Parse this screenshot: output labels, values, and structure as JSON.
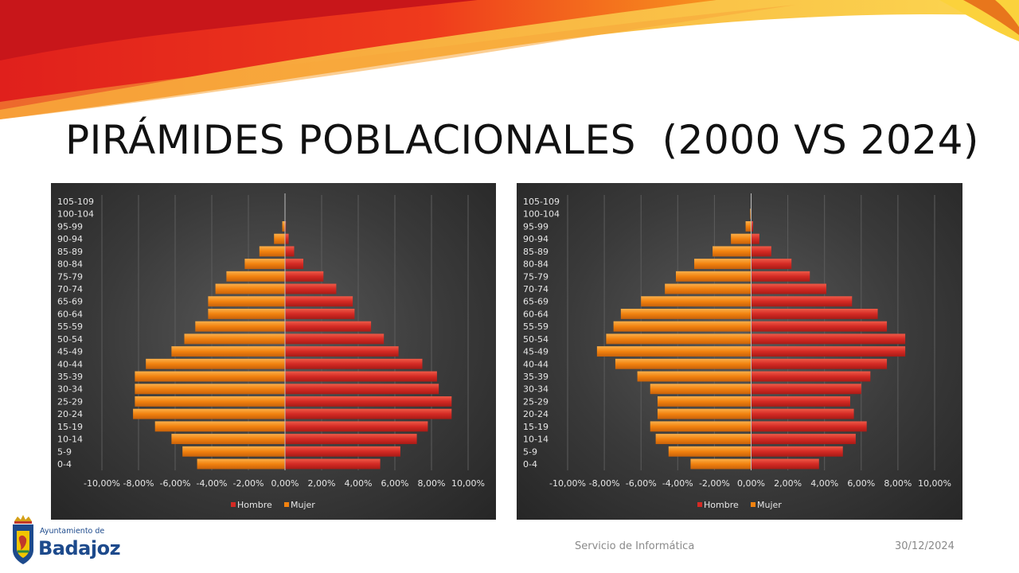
{
  "slide": {
    "title": "PIRÁMIDES POBLACIONALES  (2000 VS 2024)",
    "footer_center": "Servicio de Informática",
    "footer_date": "30/12/2024",
    "logo_small": "Ayuntamiento de",
    "logo_big": "Badajoz"
  },
  "colors": {
    "hombre": "#d42a24",
    "mujer": "#f2820f",
    "swoosh_red": "#e0201c",
    "swoosh_orange": "#f7931e",
    "swoosh_yellow": "#fbd23c"
  },
  "chart_data": [
    {
      "type": "bar",
      "orientation": "horizontal",
      "title": "",
      "categories": [
        "0-4",
        "5-9",
        "10-14",
        "15-19",
        "20-24",
        "25-29",
        "30-34",
        "35-39",
        "40-44",
        "45-49",
        "50-54",
        "55-59",
        "60-64",
        "65-69",
        "70-74",
        "75-79",
        "80-84",
        "85-89",
        "90-94",
        "95-99",
        "100-104",
        "105-109"
      ],
      "xlim": [
        -10,
        10
      ],
      "x_ticks": [
        "-10,00%",
        "-8,00%",
        "-6,00%",
        "-4,00%",
        "-2,00%",
        "0,00%",
        "2,00%",
        "4,00%",
        "6,00%",
        "8,00%",
        "10,00%"
      ],
      "grid": true,
      "legend": "bottom",
      "series": [
        {
          "name": "Hombre",
          "values": [
            5.2,
            6.3,
            7.2,
            7.8,
            9.1,
            9.1,
            8.4,
            8.3,
            7.5,
            6.2,
            5.4,
            4.7,
            3.8,
            3.7,
            2.8,
            2.1,
            1.0,
            0.5,
            0.2,
            0.05,
            0.0,
            0.0
          ]
        },
        {
          "name": "Mujer",
          "values": [
            -4.8,
            -5.6,
            -6.2,
            -7.1,
            -8.3,
            -8.2,
            -8.2,
            -8.2,
            -7.6,
            -6.2,
            -5.5,
            -4.9,
            -4.2,
            -4.2,
            -3.8,
            -3.2,
            -2.2,
            -1.4,
            -0.6,
            -0.15,
            0.0,
            0.0
          ]
        }
      ]
    },
    {
      "type": "bar",
      "orientation": "horizontal",
      "title": "",
      "categories": [
        "0-4",
        "5-9",
        "10-14",
        "15-19",
        "20-24",
        "25-29",
        "30-34",
        "35-39",
        "40-44",
        "45-49",
        "50-54",
        "55-59",
        "60-64",
        "65-69",
        "70-74",
        "75-79",
        "80-84",
        "85-89",
        "90-94",
        "95-99",
        "100-104",
        "105-109"
      ],
      "xlim": [
        -10,
        10
      ],
      "x_ticks": [
        "-10,00%",
        "-8,00%",
        "-6,00%",
        "-4,00%",
        "-2,00%",
        "0,00%",
        "2,00%",
        "4,00%",
        "6,00%",
        "8,00%",
        "10,00%"
      ],
      "grid": true,
      "legend": "bottom",
      "series": [
        {
          "name": "Hombre",
          "values": [
            3.7,
            5.0,
            5.7,
            6.3,
            5.6,
            5.4,
            6.0,
            6.5,
            7.4,
            8.4,
            8.4,
            7.4,
            6.9,
            5.5,
            4.1,
            3.2,
            2.2,
            1.1,
            0.45,
            0.1,
            0.02,
            0.0
          ]
        },
        {
          "name": "Mujer",
          "values": [
            -3.3,
            -4.5,
            -5.2,
            -5.5,
            -5.1,
            -5.1,
            -5.5,
            -6.2,
            -7.4,
            -8.4,
            -7.9,
            -7.5,
            -7.1,
            -6.0,
            -4.7,
            -4.1,
            -3.1,
            -2.1,
            -1.1,
            -0.3,
            -0.05,
            0.0
          ]
        }
      ]
    }
  ]
}
